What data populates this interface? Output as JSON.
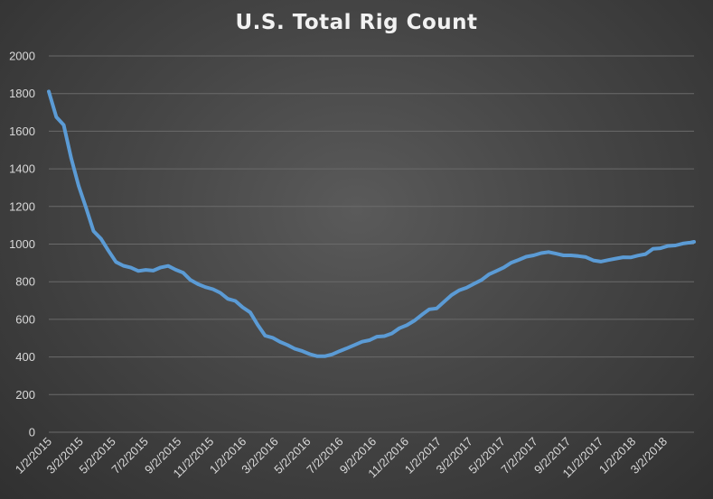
{
  "chart_data": {
    "type": "line",
    "title": "U.S. Total Rig Count",
    "xlabel": "",
    "ylabel": "",
    "ylim": [
      0,
      2000
    ],
    "yticks": [
      0,
      200,
      400,
      600,
      800,
      1000,
      1200,
      1400,
      1600,
      1800,
      2000
    ],
    "xlim": [
      "2015-01-02",
      "2018-04-27"
    ],
    "xticks": [
      "1/2/2015",
      "3/2/2015",
      "5/2/2015",
      "7/2/2015",
      "9/2/2015",
      "11/2/2015",
      "1/2/2016",
      "3/2/2016",
      "5/2/2016",
      "7/2/2016",
      "9/2/2016",
      "11/2/2016",
      "1/2/2017",
      "3/2/2017",
      "5/2/2017",
      "7/2/2017",
      "9/2/2017",
      "11/2/2017",
      "1/2/2018",
      "3/2/2018"
    ],
    "grid": true,
    "legend": "none",
    "color": "#5b9bd5",
    "series": [
      {
        "x": [
          "2015-01-02",
          "2015-01-16",
          "2015-01-30",
          "2015-02-13",
          "2015-02-27",
          "2015-03-13",
          "2015-03-27",
          "2015-04-10",
          "2015-04-24",
          "2015-05-08",
          "2015-05-22",
          "2015-06-05",
          "2015-06-19",
          "2015-07-03",
          "2015-07-17",
          "2015-07-31",
          "2015-08-14",
          "2015-08-28",
          "2015-09-11",
          "2015-09-25",
          "2015-10-09",
          "2015-10-23",
          "2015-11-06",
          "2015-11-20",
          "2015-12-04",
          "2015-12-18",
          "2016-01-01",
          "2016-01-15",
          "2016-01-29",
          "2016-02-12",
          "2016-02-26",
          "2016-03-11",
          "2016-03-25",
          "2016-04-08",
          "2016-04-22",
          "2016-05-06",
          "2016-05-20",
          "2016-06-03",
          "2016-06-17",
          "2016-07-01",
          "2016-07-15",
          "2016-07-29",
          "2016-08-12",
          "2016-08-26",
          "2016-09-09",
          "2016-09-23",
          "2016-10-07",
          "2016-10-21",
          "2016-11-04",
          "2016-11-18",
          "2016-12-02",
          "2016-12-16",
          "2016-12-30",
          "2017-01-13",
          "2017-01-27",
          "2017-02-10",
          "2017-02-24",
          "2017-03-10",
          "2017-03-24",
          "2017-04-07",
          "2017-04-21",
          "2017-05-05",
          "2017-05-19",
          "2017-06-02",
          "2017-06-16",
          "2017-06-30",
          "2017-07-14",
          "2017-07-28",
          "2017-08-11",
          "2017-08-25",
          "2017-09-08",
          "2017-09-22",
          "2017-10-06",
          "2017-10-20",
          "2017-11-03",
          "2017-11-17",
          "2017-12-01",
          "2017-12-15",
          "2017-12-29",
          "2018-01-12",
          "2018-01-26",
          "2018-02-09",
          "2018-02-23",
          "2018-03-09",
          "2018-03-23",
          "2018-04-06",
          "2018-04-20",
          "2018-04-27"
        ],
        "values": [
          1811,
          1676,
          1633,
          1456,
          1310,
          1192,
          1069,
          1028,
          965,
          905,
          885,
          875,
          857,
          863,
          859,
          876,
          884,
          864,
          848,
          809,
          787,
          771,
          760,
          741,
          709,
          698,
          664,
          637,
          571,
          513,
          502,
          480,
          464,
          443,
          431,
          415,
          404,
          404,
          414,
          431,
          447,
          464,
          481,
          489,
          508,
          511,
          525,
          553,
          569,
          593,
          624,
          653,
          658,
          694,
          729,
          754,
          768,
          789,
          809,
          839,
          857,
          876,
          901,
          916,
          933,
          940,
          952,
          958,
          949,
          940,
          940,
          936,
          931,
          913,
          907,
          915,
          923,
          930,
          929,
          939,
          947,
          975,
          978,
          990,
          993,
          1003,
          1008,
          1012
        ]
      }
    ]
  }
}
